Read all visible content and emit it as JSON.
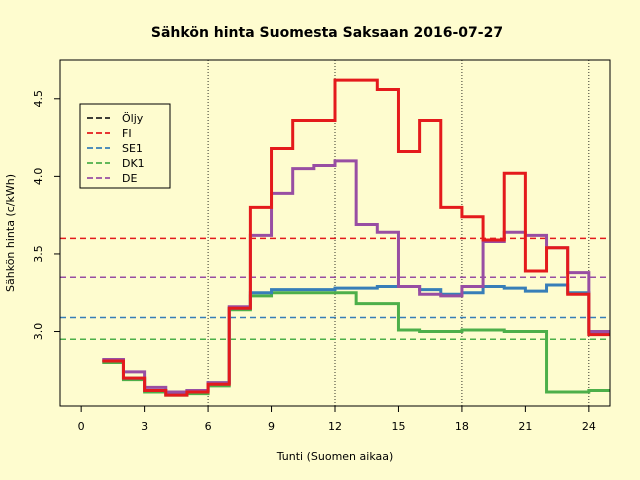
{
  "chart_data": {
    "type": "line",
    "title": "Sähkön hinta Suomesta Saksaan 2016-07-27",
    "xlabel": "Tunti (Suomen aikaa)",
    "ylabel": "Sähkön hinta (c/kWh)",
    "xlim": [
      -1,
      25
    ],
    "ylim": [
      2.52,
      4.75
    ],
    "x_ticks": [
      0,
      3,
      6,
      9,
      12,
      15,
      18,
      21,
      24
    ],
    "y_ticks": [
      3.0,
      3.5,
      4.0,
      4.5
    ],
    "y_tick_labels": [
      "3.0",
      "3.5",
      "4.0",
      "4.5"
    ],
    "vlines": [
      6,
      12,
      18,
      24
    ],
    "step_style": "s",
    "grid": false,
    "legend_position": "top-left",
    "legend": [
      {
        "name": "Öljy",
        "color": "#222222"
      },
      {
        "name": "FI",
        "color": "#e41a1c"
      },
      {
        "name": "SE1",
        "color": "#377eb8"
      },
      {
        "name": "DK1",
        "color": "#4daf4a"
      },
      {
        "name": "DE",
        "color": "#984ea3"
      }
    ],
    "hlines": [
      {
        "name": "FI",
        "value": 3.6,
        "color": "#e41a1c"
      },
      {
        "name": "SE1",
        "value": 3.09,
        "color": "#377eb8"
      },
      {
        "name": "DK1",
        "value": 2.95,
        "color": "#4daf4a"
      },
      {
        "name": "DE",
        "value": 3.35,
        "color": "#984ea3"
      }
    ],
    "x": [
      1,
      2,
      3,
      4,
      5,
      6,
      7,
      8,
      9,
      10,
      11,
      12,
      13,
      14,
      15,
      16,
      17,
      18,
      19,
      20,
      21,
      22,
      23,
      24,
      25
    ],
    "series": [
      {
        "name": "DK1",
        "color": "#4daf4a",
        "values": [
          2.8,
          2.69,
          2.61,
          2.59,
          2.6,
          2.65,
          3.14,
          3.23,
          3.25,
          3.25,
          3.25,
          3.25,
          3.18,
          3.18,
          3.01,
          3.0,
          3.0,
          3.01,
          3.01,
          3.0,
          3.0,
          2.61,
          2.61,
          2.62,
          2.62
        ]
      },
      {
        "name": "SE1",
        "color": "#377eb8",
        "values": [
          2.81,
          2.7,
          2.62,
          2.6,
          2.62,
          2.67,
          3.15,
          3.25,
          3.27,
          3.27,
          3.27,
          3.28,
          3.28,
          3.29,
          3.29,
          3.27,
          3.24,
          3.25,
          3.29,
          3.28,
          3.26,
          3.3,
          3.25,
          2.99,
          2.99
        ]
      },
      {
        "name": "DE",
        "color": "#984ea3",
        "values": [
          2.82,
          2.74,
          2.64,
          2.61,
          2.62,
          2.67,
          3.16,
          3.62,
          3.89,
          4.05,
          4.07,
          4.1,
          3.69,
          3.64,
          3.29,
          3.24,
          3.23,
          3.29,
          3.58,
          3.64,
          3.62,
          3.54,
          3.38,
          3.0,
          3.0
        ]
      },
      {
        "name": "FI",
        "color": "#e41a1c",
        "values": [
          2.81,
          2.7,
          2.62,
          2.59,
          2.61,
          2.66,
          3.15,
          3.8,
          4.18,
          4.36,
          4.36,
          4.62,
          4.62,
          4.56,
          4.16,
          4.36,
          3.8,
          3.74,
          3.59,
          4.02,
          3.39,
          3.54,
          3.24,
          2.98,
          2.98
        ]
      }
    ]
  }
}
